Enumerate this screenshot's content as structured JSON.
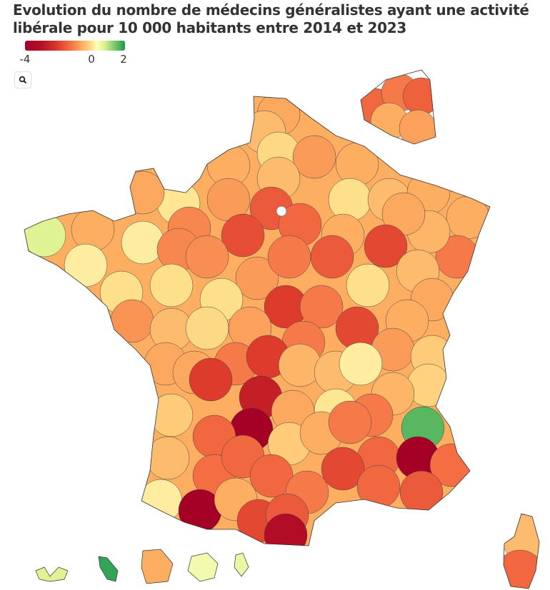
{
  "title": "Evolution du nombre de médecins généralistes ayant une activité libérale pour 10 000 habitants entre 2014 et 2023",
  "chart_data": {
    "type": "choropleth",
    "title": "Evolution du nombre de médecins généralistes ayant une activité libérale pour 10 000 habitants entre 2014 et 2023",
    "legend": {
      "min": -4,
      "max": 2,
      "ticks": [
        "-4",
        "0",
        "2"
      ],
      "placement": "top-left"
    },
    "colors": [
      "#a50026",
      "#d73027",
      "#f46d43",
      "#fdae61",
      "#fee08b",
      "#ffffbf",
      "#d9ef8b",
      "#66bd63",
      "#1a9850"
    ],
    "metropole_values": [
      -1.3,
      -1.0,
      -0.6,
      -1.5,
      -1.2,
      -1.2,
      -1.0,
      -0.5,
      -1.0,
      -1.2,
      -1.2,
      -2.0,
      -1.1,
      -1.3,
      -1.2,
      -2.8,
      -0.4,
      -1.3,
      -1.5,
      -2.5,
      -2.3,
      -1.8,
      -2.7,
      -2.5,
      -0.5,
      -1.0,
      -1.3,
      -1.2,
      0.5,
      -1.2,
      -0.3,
      -0.3,
      -0.5,
      -1.8,
      -1.7,
      -0.5,
      -1.5,
      -2.0,
      -0.5,
      -3.0,
      -2.0,
      -2.8,
      -1.6,
      -1.0,
      -0.6,
      -1.4,
      -2.0,
      -1.5,
      -0.8,
      -0.7,
      -1.3,
      -1.3,
      -2.0,
      -3.0,
      -1.1,
      -1.0,
      -0.3,
      -1.1,
      -3.0,
      -3.5,
      -1.3,
      -0.4,
      -2.0,
      1.5,
      -0.8,
      -4.0,
      -2.3,
      -0.8,
      -1.2,
      -2.0,
      -2.3,
      -4.0,
      -2.2,
      -1.0,
      -2.2,
      -2.3,
      -2.3,
      -2.8,
      -2.0,
      -2.3,
      -2.5,
      -0.3,
      -4.0,
      -1.2,
      -2.8,
      -2.5,
      -3.8
    ],
    "corse_values": [
      -1.0,
      -2.3
    ],
    "outremer_values": [
      0.5,
      1.8,
      -1.2,
      0.2,
      0.3
    ],
    "idf_inset_values": [
      -2.3,
      -2.0,
      -2.4,
      -1.2,
      -1.4
    ]
  }
}
